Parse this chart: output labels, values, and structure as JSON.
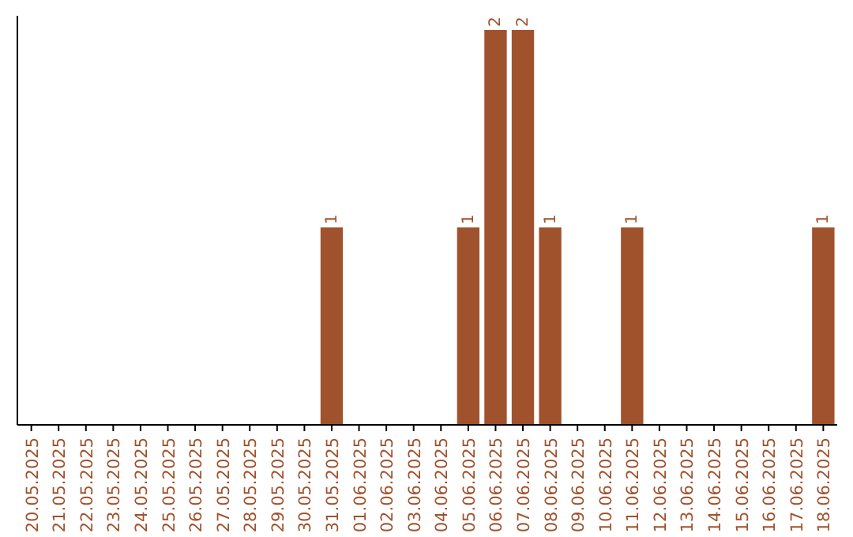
{
  "chart_data": {
    "type": "bar",
    "categories": [
      "20.05.2025",
      "21.05.2025",
      "22.05.2025",
      "23.05.2025",
      "24.05.2025",
      "25.05.2025",
      "26.05.2025",
      "27.05.2025",
      "28.05.2025",
      "29.05.2025",
      "30.05.2025",
      "31.05.2025",
      "01.06.2025",
      "02.06.2025",
      "03.06.2025",
      "04.06.2025",
      "05.06.2025",
      "06.06.2025",
      "07.06.2025",
      "08.06.2025",
      "09.06.2025",
      "10.06.2025",
      "11.06.2025",
      "12.06.2025",
      "13.06.2025",
      "14.06.2025",
      "15.06.2025",
      "16.06.2025",
      "17.06.2025",
      "18.06.2025"
    ],
    "values": [
      0,
      0,
      0,
      0,
      0,
      0,
      0,
      0,
      0,
      0,
      0,
      1,
      0,
      0,
      0,
      0,
      1,
      2,
      2,
      1,
      0,
      0,
      1,
      0,
      0,
      0,
      0,
      0,
      0,
      1
    ],
    "value_labels": [
      null,
      null,
      null,
      null,
      null,
      null,
      null,
      null,
      null,
      null,
      null,
      "1",
      null,
      null,
      null,
      null,
      "1",
      "2",
      "2",
      "1",
      null,
      null,
      "1",
      null,
      null,
      null,
      null,
      null,
      null,
      "1"
    ],
    "color": "#a0522d",
    "tick_labels": "x"
  }
}
